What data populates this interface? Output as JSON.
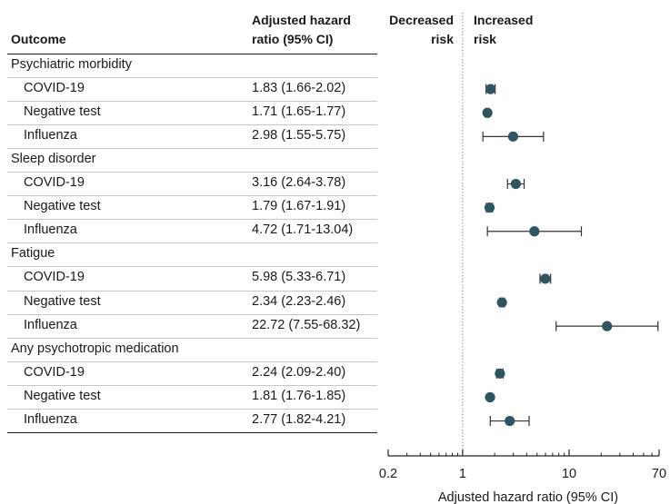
{
  "headers": {
    "outcome": "Outcome",
    "hr_line1": "Adjusted hazard",
    "hr_line2": "ratio (95% CI)",
    "decreased_line1": "Decreased",
    "decreased_line2": "risk",
    "increased_line1": "Increased",
    "increased_line2": "risk"
  },
  "colors": {
    "marker": "#2f5563",
    "whisker": "#333333",
    "reference_line": "#777777"
  },
  "chart_data": {
    "type": "forest",
    "xlabel": "Adjusted hazard ratio (95% CI)",
    "x_scale": "log",
    "xlim": [
      0.2,
      70
    ],
    "x_ticks": [
      0.2,
      1,
      10,
      70
    ],
    "x_tick_labels": [
      "0.2",
      "1",
      "10",
      "70"
    ],
    "reference_value": 1,
    "groups": [
      {
        "name": "Psychiatric morbidity",
        "rows": [
          {
            "label": "COVID-19",
            "ci_text": "1.83 (1.66-2.02)",
            "hr": 1.83,
            "lo": 1.66,
            "hi": 2.02
          },
          {
            "label": "Negative test",
            "ci_text": "1.71 (1.65-1.77)",
            "hr": 1.71,
            "lo": 1.65,
            "hi": 1.77
          },
          {
            "label": "Influenza",
            "ci_text": "2.98 (1.55-5.75)",
            "hr": 2.98,
            "lo": 1.55,
            "hi": 5.75
          }
        ]
      },
      {
        "name": "Sleep disorder",
        "rows": [
          {
            "label": "COVID-19",
            "ci_text": "3.16 (2.64-3.78)",
            "hr": 3.16,
            "lo": 2.64,
            "hi": 3.78
          },
          {
            "label": "Negative test",
            "ci_text": "1.79 (1.67-1.91)",
            "hr": 1.79,
            "lo": 1.67,
            "hi": 1.91
          },
          {
            "label": "Influenza",
            "ci_text": "4.72 (1.71-13.04)",
            "hr": 4.72,
            "lo": 1.71,
            "hi": 13.04
          }
        ]
      },
      {
        "name": "Fatigue",
        "rows": [
          {
            "label": "COVID-19",
            "ci_text": "5.98 (5.33-6.71)",
            "hr": 5.98,
            "lo": 5.33,
            "hi": 6.71
          },
          {
            "label": "Negative test",
            "ci_text": "2.34 (2.23-2.46)",
            "hr": 2.34,
            "lo": 2.23,
            "hi": 2.46
          },
          {
            "label": "Influenza",
            "ci_text": "22.72 (7.55-68.32)",
            "hr": 22.72,
            "lo": 7.55,
            "hi": 68.32
          }
        ]
      },
      {
        "name": "Any psychotropic medication",
        "rows": [
          {
            "label": "COVID-19",
            "ci_text": "2.24 (2.09-2.40)",
            "hr": 2.24,
            "lo": 2.09,
            "hi": 2.4
          },
          {
            "label": "Negative test",
            "ci_text": "1.81 (1.76-1.85)",
            "hr": 1.81,
            "lo": 1.76,
            "hi": 1.85
          },
          {
            "label": "Influenza",
            "ci_text": "2.77 (1.82-4.21)",
            "hr": 2.77,
            "lo": 1.82,
            "hi": 4.21
          }
        ]
      }
    ]
  }
}
